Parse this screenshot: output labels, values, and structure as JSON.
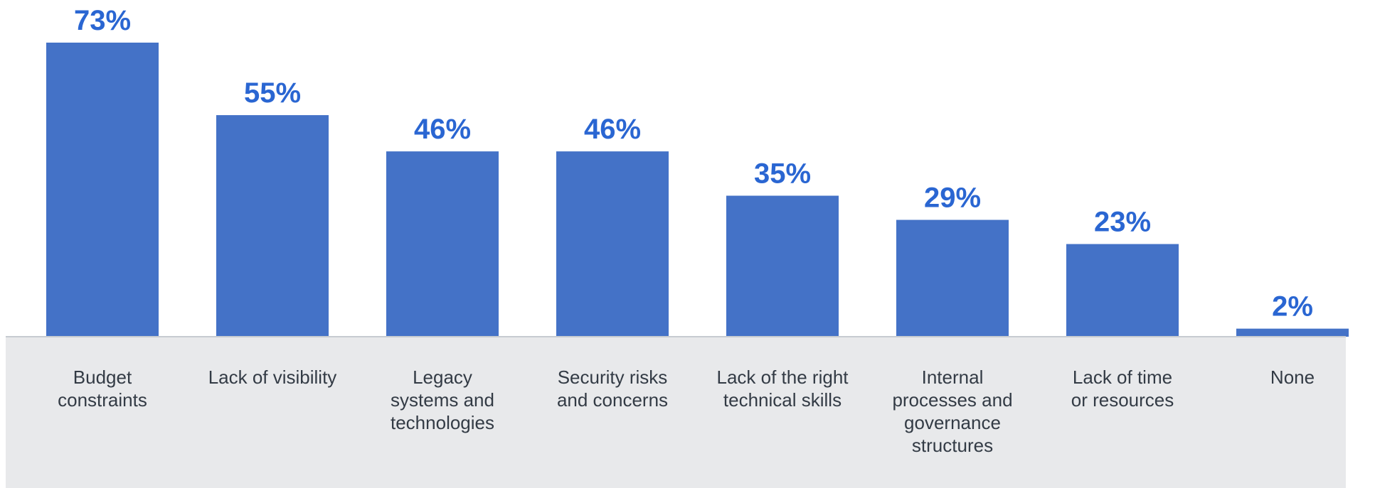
{
  "chart_data": {
    "type": "bar",
    "categories": [
      [
        "Budget",
        "constraints"
      ],
      [
        "Lack of visibility"
      ],
      [
        "Legacy",
        "systems and",
        "technologies"
      ],
      [
        "Security risks",
        "and concerns"
      ],
      [
        "Lack of the right",
        "technical skills"
      ],
      [
        "Internal",
        "processes and",
        "governance",
        "structures"
      ],
      [
        "Lack of time",
        "or resources"
      ],
      [
        "None"
      ]
    ],
    "values": [
      73,
      55,
      46,
      46,
      35,
      29,
      23,
      2
    ],
    "value_labels": [
      "73%",
      "55%",
      "46%",
      "46%",
      "35%",
      "29%",
      "23%",
      "2%"
    ],
    "title": "",
    "xlabel": "",
    "ylabel": "",
    "ylim": [
      0,
      80
    ],
    "grid": false,
    "legend": "none"
  },
  "colors": {
    "bar": "#4472c7",
    "value_label": "#2a66d2",
    "category_label": "#333b45",
    "label_band": "#e8e9eb",
    "baseline": "#c7cbd1",
    "background": "#ffffff"
  }
}
